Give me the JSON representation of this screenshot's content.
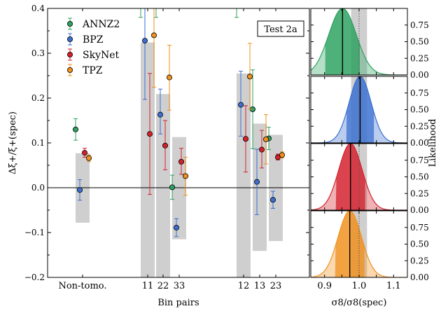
{
  "chart_data": {
    "type": "scatter",
    "annotation": "Test 2a",
    "main": {
      "xlabel": "Bin pairs",
      "ylabel": "Δξ+/ξ+(spec)",
      "ylim": [
        -0.2,
        0.4
      ],
      "yticks": [
        "−0.2",
        "−0.1",
        "0.0",
        "0.1",
        "0.2",
        "0.3",
        "0.4"
      ],
      "ytick_values": [
        -0.2,
        -0.1,
        0.0,
        0.1,
        0.2,
        0.3,
        0.4
      ],
      "categories": [
        "Non-tomo.",
        "11",
        "22",
        "33",
        "12",
        "13",
        "23"
      ],
      "category_labels_drawn": [
        "Non-tomo.",
        "11",
        "22",
        "33",
        "12",
        "13",
        "23"
      ],
      "reference_line_y": 0.0,
      "grey_bands": [
        {
          "category": "Non-tomo.",
          "low": -0.078,
          "high": 0.077
        },
        {
          "category": "11",
          "low": -0.2,
          "high": 0.324
        },
        {
          "category": "22",
          "low": -0.2,
          "high": 0.209
        },
        {
          "category": "33",
          "low": -0.115,
          "high": 0.113
        },
        {
          "category": "12",
          "low": -0.2,
          "high": 0.255
        },
        {
          "category": "13",
          "low": -0.141,
          "high": 0.143
        },
        {
          "category": "23",
          "low": -0.119,
          "high": 0.118
        }
      ],
      "legend_position": "top-left",
      "series": [
        {
          "name": "ANNZ2",
          "color": "#2ca25f",
          "values": [
            0.13,
            0.43,
            0.43,
            0.001,
            0.43,
            0.175,
            0.11
          ],
          "err_low": [
            0.106,
            0.38,
            0.38,
            -0.026,
            0.38,
            0.087,
            0.085
          ],
          "err_high": [
            0.154,
            0.44,
            0.44,
            0.028,
            0.44,
            0.263,
            0.135
          ]
        },
        {
          "name": "BPZ",
          "color": "#3a6fd0",
          "values": [
            -0.005,
            0.328,
            0.163,
            -0.089,
            0.185,
            0.013,
            -0.027
          ],
          "err_low": [
            -0.028,
            0.197,
            0.12,
            -0.109,
            0.115,
            -0.06,
            -0.046
          ],
          "err_high": [
            0.018,
            0.458,
            0.22,
            -0.069,
            0.26,
            0.086,
            -0.008
          ]
        },
        {
          "name": "SkyNet",
          "color": "#d4202c",
          "values": [
            0.078,
            0.12,
            0.094,
            0.058,
            0.109,
            0.085,
            0.068
          ],
          "err_low": [
            0.068,
            -0.015,
            0.04,
            0.03,
            0.035,
            0.044,
            0.062
          ],
          "err_high": [
            0.088,
            0.255,
            0.15,
            0.088,
            0.183,
            0.128,
            0.075
          ]
        },
        {
          "name": "TPZ",
          "color": "#f0901e",
          "values": [
            0.066,
            0.34,
            0.246,
            0.026,
            0.248,
            0.108,
            0.073
          ],
          "err_low": [
            0.058,
            0.224,
            0.173,
            -0.017,
            0.175,
            0.053,
            0.066
          ],
          "err_high": [
            0.073,
            0.46,
            0.318,
            0.068,
            0.322,
            0.163,
            0.08
          ]
        }
      ]
    },
    "side_panels": {
      "xlabel": "σ8/σ8(spec)",
      "ylabel": "Likelihood",
      "xlim": [
        0.86,
        1.14
      ],
      "xticks": [
        "0.9",
        "0.95",
        "1.0",
        "1.05",
        "1.1"
      ],
      "xtick_values": [
        0.9,
        0.95,
        1.0,
        1.05,
        1.1
      ],
      "ylim": [
        0,
        1.0
      ],
      "yticks": [
        "0.00",
        "0.25",
        "0.50",
        "0.75"
      ],
      "ytick_values": [
        0.0,
        0.25,
        0.5,
        0.75
      ],
      "reference_band": [
        0.977,
        1.023
      ],
      "reference_dotted": 1.0,
      "panels": [
        {
          "series": "ANNZ2",
          "color": "#2ca25f",
          "mean": 0.952,
          "sigma": 0.04
        },
        {
          "series": "BPZ",
          "color": "#3a6fd0",
          "mean": 1.003,
          "sigma": 0.032
        },
        {
          "series": "SkyNet",
          "color": "#d4202c",
          "mean": 0.975,
          "sigma": 0.034
        },
        {
          "series": "TPZ",
          "color": "#f0901e",
          "mean": 0.973,
          "sigma": 0.034
        }
      ]
    }
  }
}
